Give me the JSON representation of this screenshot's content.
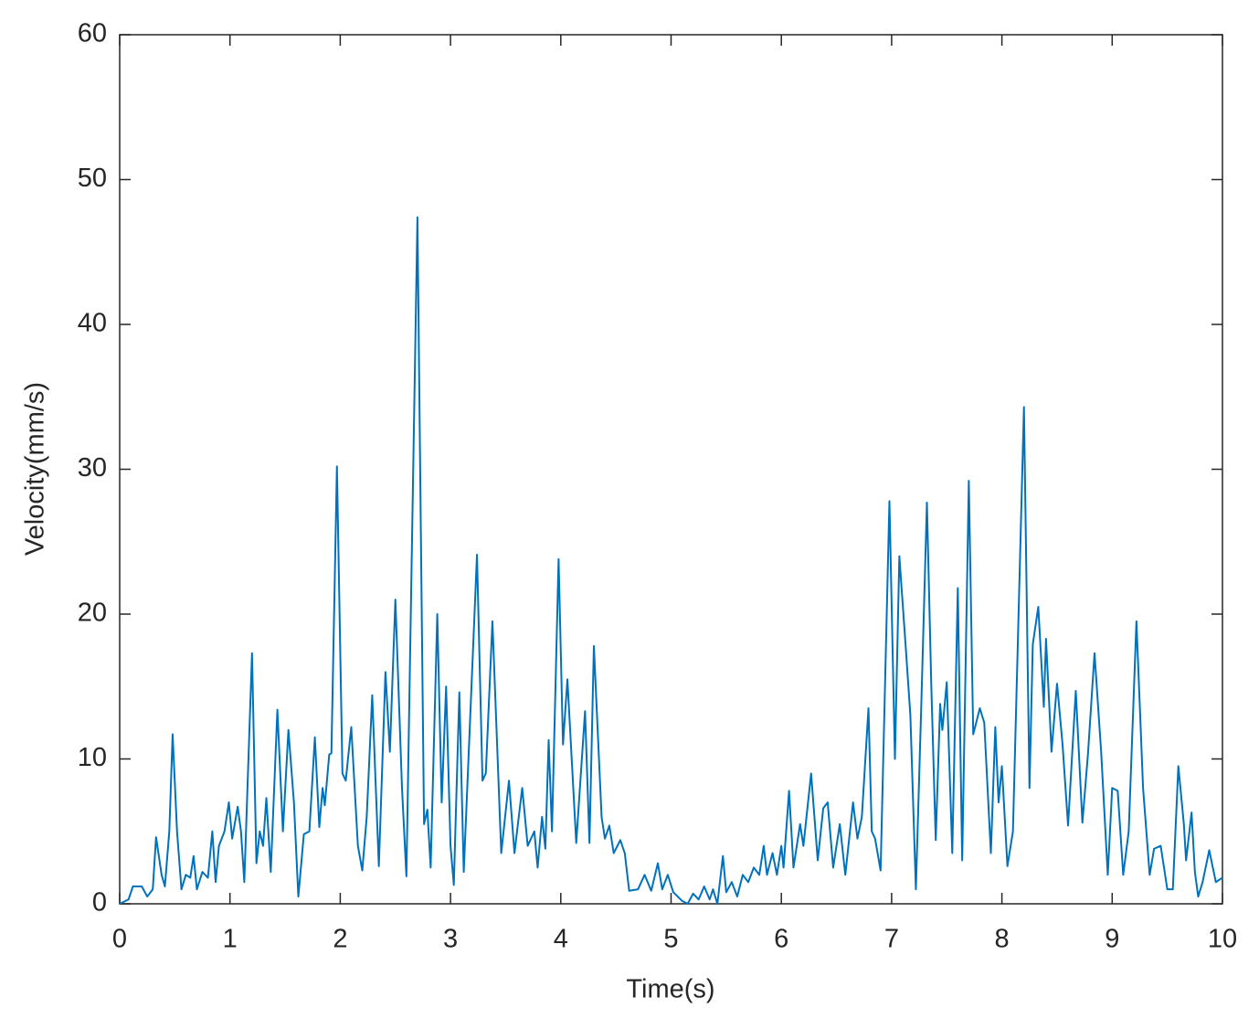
{
  "chart_data": {
    "type": "line",
    "xlabel": "Time(s)",
    "ylabel": "Velocity(mm/s)",
    "color": "#0072bd",
    "xlim": [
      0,
      10
    ],
    "xticks": [
      0,
      1,
      2,
      3,
      4,
      5,
      6,
      7,
      8,
      9,
      10
    ],
    "ylim": [
      0,
      60
    ],
    "yticks": [
      0,
      10,
      20,
      30,
      40,
      50,
      60
    ],
    "grid": false,
    "x": [
      0,
      0.08,
      0.12,
      0.2,
      0.25,
      0.3,
      0.33,
      0.38,
      0.41,
      0.45,
      0.48,
      0.52,
      0.56,
      0.6,
      0.64,
      0.67,
      0.7,
      0.75,
      0.8,
      0.84,
      0.87,
      0.9,
      0.95,
      0.99,
      1.02,
      1.07,
      1.1,
      1.13,
      1.2,
      1.24,
      1.27,
      1.3,
      1.33,
      1.37,
      1.43,
      1.48,
      1.53,
      1.58,
      1.62,
      1.67,
      1.72,
      1.77,
      1.81,
      1.84,
      1.86,
      1.9,
      1.92,
      1.97,
      2.02,
      2.05,
      2.1,
      2.16,
      2.2,
      2.24,
      2.29,
      2.35,
      2.41,
      2.45,
      2.5,
      2.56,
      2.6,
      2.7,
      2.76,
      2.79,
      2.82,
      2.88,
      2.92,
      2.96,
      3.0,
      3.03,
      3.08,
      3.12,
      3.24,
      3.29,
      3.32,
      3.38,
      3.46,
      3.53,
      3.58,
      3.65,
      3.7,
      3.76,
      3.79,
      3.83,
      3.86,
      3.89,
      3.92,
      3.98,
      4.02,
      4.06,
      4.14,
      4.22,
      4.26,
      4.3,
      4.37,
      4.4,
      4.44,
      4.48,
      4.54,
      4.58,
      4.62,
      4.7,
      4.76,
      4.82,
      4.88,
      4.92,
      4.97,
      5.02,
      5.1,
      5.15,
      5.2,
      5.25,
      5.3,
      5.35,
      5.38,
      5.42,
      5.47,
      5.5,
      5.55,
      5.6,
      5.65,
      5.7,
      5.75,
      5.8,
      5.84,
      5.87,
      5.92,
      5.96,
      6.0,
      6.02,
      6.07,
      6.11,
      6.17,
      6.2,
      6.27,
      6.33,
      6.38,
      6.42,
      6.47,
      6.53,
      6.58,
      6.65,
      6.69,
      6.73,
      6.79,
      6.82,
      6.85,
      6.9,
      6.98,
      7.03,
      7.07,
      7.13,
      7.17,
      7.22,
      7.27,
      7.32,
      7.36,
      7.4,
      7.44,
      7.46,
      7.5,
      7.55,
      7.6,
      7.64,
      7.7,
      7.74,
      7.8,
      7.84,
      7.9,
      7.94,
      7.97,
      8.0,
      8.05,
      8.1,
      8.2,
      8.25,
      8.28,
      8.33,
      8.38,
      8.4,
      8.45,
      8.5,
      8.55,
      8.6,
      8.67,
      8.73,
      8.78,
      8.84,
      8.9,
      8.96,
      9.0,
      9.05,
      9.1,
      9.15,
      9.22,
      9.28,
      9.34,
      9.38,
      9.44,
      9.5,
      9.55,
      9.6,
      9.65,
      9.67,
      9.72,
      9.75,
      9.78,
      9.82,
      9.88,
      9.94,
      10
    ],
    "values": [
      0,
      0.3,
      1.2,
      1.2,
      0.5,
      1,
      4.6,
      2,
      1.2,
      5,
      11.7,
      5,
      1,
      2,
      1.8,
      3.3,
      1,
      2.2,
      1.8,
      5,
      1.5,
      4,
      5,
      7,
      4.5,
      6.7,
      5,
      1.5,
      17.3,
      2.8,
      5,
      4,
      7.3,
      2.2,
      13.4,
      5,
      12,
      7,
      0.5,
      4.8,
      5,
      11.5,
      5.3,
      8,
      6.8,
      10.3,
      10.4,
      30.2,
      9,
      8.5,
      12.2,
      4,
      2.3,
      6,
      14.4,
      2.6,
      16,
      10.5,
      21,
      8,
      1.9,
      47.4,
      5.5,
      6.5,
      2.5,
      20,
      7,
      15,
      4,
      1.3,
      14.6,
      2.2,
      24.1,
      8.5,
      9,
      19.5,
      3.5,
      8.5,
      3.5,
      8,
      4,
      5,
      2.5,
      6,
      3.8,
      11.3,
      5,
      23.8,
      11,
      15.5,
      4.2,
      13.3,
      4.2,
      17.8,
      6,
      4.5,
      5.4,
      3.5,
      4.4,
      3.5,
      0.9,
      1,
      2,
      0.9,
      2.8,
      1,
      2,
      0.8,
      0.2,
      0,
      0.7,
      0.3,
      1.2,
      0.3,
      1,
      0,
      3.3,
      0.8,
      1.5,
      0.5,
      2,
      1.5,
      2.5,
      2,
      4,
      2,
      3.5,
      2,
      4,
      2.5,
      7.8,
      2.5,
      5.5,
      4,
      9,
      3,
      6.6,
      7,
      2.5,
      5.5,
      2,
      7,
      4.5,
      6,
      13.5,
      5,
      4.5,
      2.3,
      27.8,
      10,
      24,
      17.5,
      13,
      1,
      14,
      27.7,
      15,
      4.4,
      13.8,
      12,
      15.3,
      3.5,
      21.8,
      3,
      29.2,
      11.7,
      13.5,
      12.5,
      3.5,
      12.2,
      7,
      9.5,
      2.6,
      5,
      34.3,
      8,
      17.9,
      20.5,
      13.6,
      18.3,
      10.5,
      15.2,
      11,
      5.4,
      14.7,
      5.6,
      10.3,
      17.3,
      10.5,
      2,
      8,
      7.8,
      2,
      5,
      19.5,
      8,
      2,
      3.8,
      4,
      1,
      1,
      9.5,
      5.5,
      3,
      6.3,
      2.2,
      0.5,
      1.5,
      3.7,
      1.5,
      1.8
    ]
  }
}
